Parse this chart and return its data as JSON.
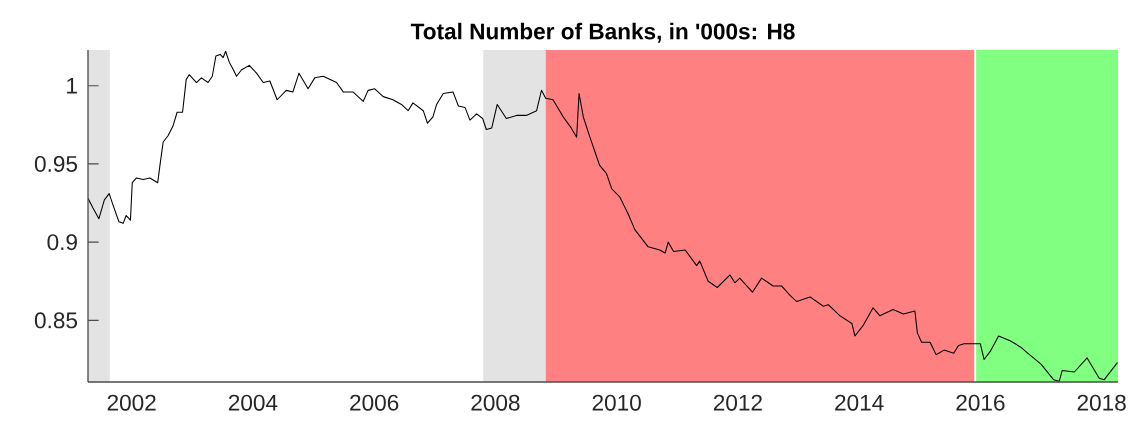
{
  "chart_data": {
    "type": "line",
    "title": "Total Number of Banks, in '000s: H8",
    "x": [
      2001.28,
      2001.36,
      2001.46,
      2001.55,
      2001.63,
      2001.69,
      2001.79,
      2001.86,
      2001.91,
      2001.98,
      2002.01,
      2002.08,
      2002.19,
      2002.3,
      2002.43,
      2002.47,
      2002.52,
      2002.6,
      2002.68,
      2002.75,
      2002.84,
      2002.9,
      2002.95,
      2003.07,
      2003.15,
      2003.26,
      2003.33,
      2003.39,
      2003.46,
      2003.51,
      2003.55,
      2003.61,
      2003.68,
      2003.73,
      2003.81,
      2003.94,
      2004.06,
      2004.17,
      2004.28,
      2004.4,
      2004.55,
      2004.66,
      2004.76,
      2004.91,
      2005.02,
      2005.16,
      2005.38,
      2005.49,
      2005.65,
      2005.82,
      2005.9,
      2006.01,
      2006.15,
      2006.31,
      2006.45,
      2006.56,
      2006.64,
      2006.81,
      2006.88,
      2006.97,
      2007.03,
      2007.14,
      2007.3,
      2007.39,
      2007.5,
      2007.58,
      2007.69,
      2007.79,
      2007.85,
      2007.94,
      2008.03,
      2008.18,
      2008.35,
      2008.51,
      2008.68,
      2008.76,
      2008.83,
      2008.95,
      2009.12,
      2009.25,
      2009.34,
      2009.38,
      2009.45,
      2009.56,
      2009.72,
      2009.83,
      2009.92,
      2010.05,
      2010.19,
      2010.3,
      2010.52,
      2010.71,
      2010.8,
      2010.85,
      2010.94,
      2011.13,
      2011.32,
      2011.37,
      2011.51,
      2011.66,
      2011.87,
      2011.95,
      2012.03,
      2012.24,
      2012.39,
      2012.58,
      2012.72,
      2012.86,
      2012.97,
      2013.19,
      2013.41,
      2013.49,
      2013.68,
      2013.88,
      2013.93,
      2014.07,
      2014.23,
      2014.34,
      2014.56,
      2014.73,
      2014.92,
      2014.96,
      2015.03,
      2015.17,
      2015.27,
      2015.4,
      2015.56,
      2015.64,
      2015.73,
      2016.0,
      2016.06,
      2016.16,
      2016.3,
      2016.49,
      2016.66,
      2016.78,
      2017.0,
      2017.21,
      2017.3,
      2017.35,
      2017.55,
      2017.76,
      2017.96,
      2018.04,
      2018.18,
      2018.26
    ],
    "values": [
      0.928,
      0.922,
      0.915,
      0.927,
      0.931,
      0.924,
      0.913,
      0.912,
      0.917,
      0.914,
      0.938,
      0.941,
      0.94,
      0.941,
      0.938,
      0.95,
      0.964,
      0.968,
      0.974,
      0.983,
      0.983,
      1.004,
      1.007,
      1.002,
      1.005,
      1.002,
      1.006,
      1.019,
      1.02,
      1.018,
      1.022,
      1.015,
      1.01,
      1.006,
      1.01,
      1.013,
      1.008,
      1.002,
      1.003,
      0.991,
      0.997,
      0.996,
      1.008,
      0.998,
      1.005,
      1.006,
      1.002,
      0.996,
      0.996,
      0.99,
      0.997,
      0.998,
      0.993,
      0.991,
      0.988,
      0.984,
      0.989,
      0.984,
      0.976,
      0.98,
      0.988,
      0.995,
      0.996,
      0.987,
      0.986,
      0.978,
      0.982,
      0.979,
      0.972,
      0.973,
      0.988,
      0.979,
      0.981,
      0.981,
      0.984,
      0.997,
      0.992,
      0.991,
      0.98,
      0.973,
      0.967,
      0.995,
      0.98,
      0.967,
      0.949,
      0.944,
      0.934,
      0.929,
      0.918,
      0.908,
      0.897,
      0.895,
      0.893,
      0.9,
      0.894,
      0.895,
      0.885,
      0.888,
      0.875,
      0.871,
      0.879,
      0.874,
      0.877,
      0.868,
      0.877,
      0.872,
      0.872,
      0.866,
      0.862,
      0.865,
      0.859,
      0.86,
      0.853,
      0.848,
      0.84,
      0.847,
      0.858,
      0.853,
      0.857,
      0.854,
      0.856,
      0.842,
      0.836,
      0.836,
      0.828,
      0.831,
      0.829,
      0.834,
      0.835,
      0.835,
      0.825,
      0.83,
      0.84,
      0.837,
      0.833,
      0.829,
      0.822,
      0.812,
      0.811,
      0.818,
      0.817,
      0.826,
      0.813,
      0.812,
      0.819,
      0.823
    ],
    "color": "#000000",
    "xlim": [
      2001.28,
      2018.27
    ],
    "ylim": [
      0.8106,
      1.0228
    ],
    "xticks": [
      2002,
      2004,
      2006,
      2008,
      2010,
      2012,
      2014,
      2016,
      2018
    ],
    "yticks": [
      0.85,
      0.9,
      0.95,
      1
    ],
    "bands": [
      {
        "axis": "x",
        "from": 2001.28,
        "to": 2001.64,
        "color": "#e3e3e3"
      },
      {
        "axis": "x",
        "from": 2007.8,
        "to": 2009.31,
        "color": "#e3e3e3"
      },
      {
        "axis": "x",
        "from": 2008.83,
        "to": 2015.9,
        "color": "#ff8080"
      },
      {
        "axis": "x",
        "from": 2015.93,
        "to": 2018.27,
        "color": "#80ff80"
      }
    ]
  }
}
